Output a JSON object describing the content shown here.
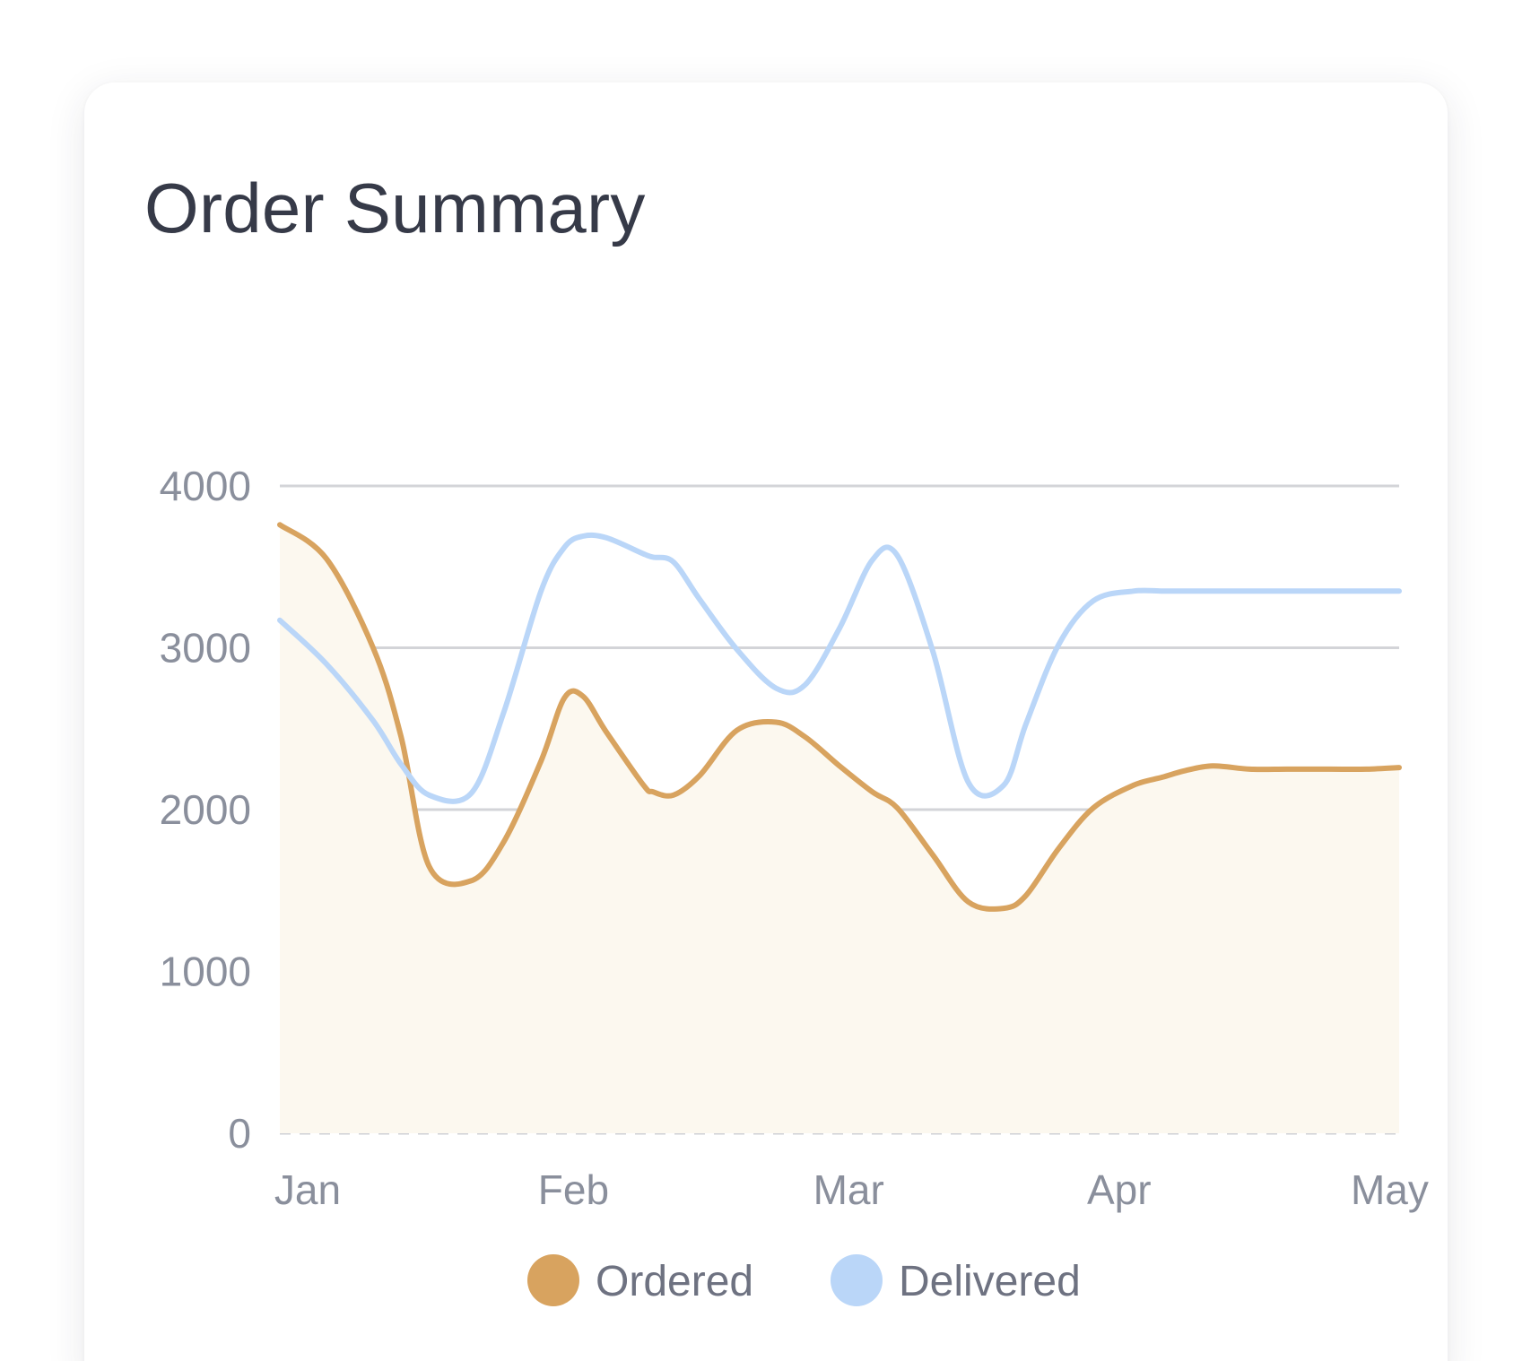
{
  "card": {
    "title": "Order Summary"
  },
  "chart_data": {
    "type": "line",
    "title": "Order Summary",
    "xlabel": "",
    "ylabel": "",
    "categories": [
      "Jan",
      "Feb",
      "Mar",
      "Apr",
      "May"
    ],
    "x": [
      0,
      0.5,
      1,
      1.3,
      1.6,
      2.05,
      2.4,
      2.8,
      3.05,
      3.25,
      3.5,
      3.9,
      4.0,
      4.22,
      4.5,
      4.9,
      5.32,
      5.63,
      6.0,
      6.35,
      6.62,
      7.0,
      7.38,
      7.76,
      8.0,
      8.35,
      8.72,
      9.15,
      9.46,
      9.7,
      10.0,
      10.4,
      10.8,
      11.25,
      11.65,
      12.0
    ],
    "x_axis": {
      "min": 0,
      "max": 12,
      "tick_values": [
        0.25,
        3.1,
        6.05,
        8.95,
        11.85
      ],
      "tick_labels": [
        "Jan",
        "Feb",
        "Mar",
        "Apr",
        "May"
      ]
    },
    "ylim": [
      0,
      4000
    ],
    "yticks": [
      0,
      1000,
      2000,
      3000,
      4000
    ],
    "grid": true,
    "legend_position": "bottom-center",
    "series": [
      {
        "name": "Ordered",
        "color": "#d8a35f",
        "fill": "#fcf8ef",
        "area": true,
        "values": [
          3760,
          3550,
          3000,
          2450,
          1650,
          1560,
          1800,
          2300,
          2690,
          2700,
          2480,
          2150,
          2110,
          2090,
          2210,
          2490,
          2540,
          2450,
          2270,
          2110,
          2010,
          1720,
          1430,
          1390,
          1470,
          1760,
          2010,
          2150,
          2200,
          2240,
          2270,
          2250,
          2250,
          2250,
          2250,
          2260
        ]
      },
      {
        "name": "Delivered",
        "color": "#bad6f8",
        "fill": "",
        "area": false,
        "values": [
          3170,
          2900,
          2550,
          2280,
          2090,
          2100,
          2600,
          3350,
          3620,
          3690,
          3680,
          3580,
          3560,
          3530,
          3300,
          2990,
          2750,
          2770,
          3120,
          3540,
          3570,
          2980,
          2170,
          2150,
          2530,
          3020,
          3290,
          3350,
          3350,
          3350,
          3350,
          3350,
          3350,
          3350,
          3350,
          3350
        ]
      }
    ]
  }
}
